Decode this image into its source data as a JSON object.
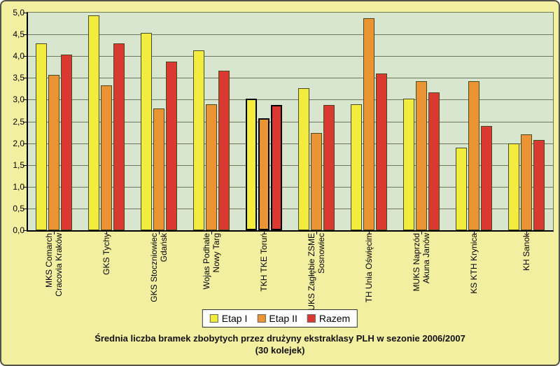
{
  "window": {
    "background_color": "#F3EFA0",
    "border_color": "#52524A"
  },
  "chart_data": {
    "type": "bar",
    "title_line1": "Średnia liczba bramek zbobytych przez drużyny ekstraklasy PLH w sezonie 2006/2007",
    "title_line2": "(30 kolejek)",
    "categories": [
      "MKS Comarch\nCracovia Kraków",
      "GKS Tychy",
      "GKS Stoczniowiec\nGdańsk",
      "Wojas Podhale\nNowy Targ",
      "TKH TKE Toruń",
      "UKS Zagłębie ZSME\nSosnowiec",
      "TH Unia Oświęcim",
      "MUKS Naprzód\nAkuna Janów",
      "KS KTH Krynica",
      "KH Sanok"
    ],
    "series": [
      {
        "name": "Etap I",
        "color": "#F2EC3E",
        "values": [
          4.3,
          4.93,
          4.53,
          4.13,
          3.03,
          3.27,
          2.9,
          3.03,
          1.9,
          2.0
        ]
      },
      {
        "name": "Etap II",
        "color": "#EB9434",
        "values": [
          3.57,
          3.33,
          2.8,
          2.9,
          2.57,
          2.23,
          4.87,
          3.43,
          3.43,
          2.2
        ]
      },
      {
        "name": "Razem",
        "color": "#DA3931",
        "values": [
          4.03,
          4.3,
          3.87,
          3.67,
          2.87,
          2.87,
          3.6,
          3.17,
          2.4,
          2.07
        ]
      }
    ],
    "highlighted_category": "TKH TKE Toruń",
    "highlighted_category_index": 4,
    "y_axis": {
      "min": 0,
      "max": 5,
      "step": 0.5,
      "tick_labels": [
        "5,0",
        "4,5",
        "4,0",
        "3,5",
        "3,0",
        "2,5",
        "2,0",
        "1,5",
        "1,0",
        "0,5",
        "0,0"
      ]
    },
    "xlabel": "",
    "ylabel": "",
    "legend_position": "bottom",
    "grid": true,
    "colors": {
      "plot_background": "#D8E5CF",
      "gridline": "#6F7759",
      "bar_border": "#4A4A22",
      "highlight_border": "#000000",
      "axis": "#000000",
      "legend_background": "#FFFFFF",
      "legend_border": "#333333"
    }
  }
}
